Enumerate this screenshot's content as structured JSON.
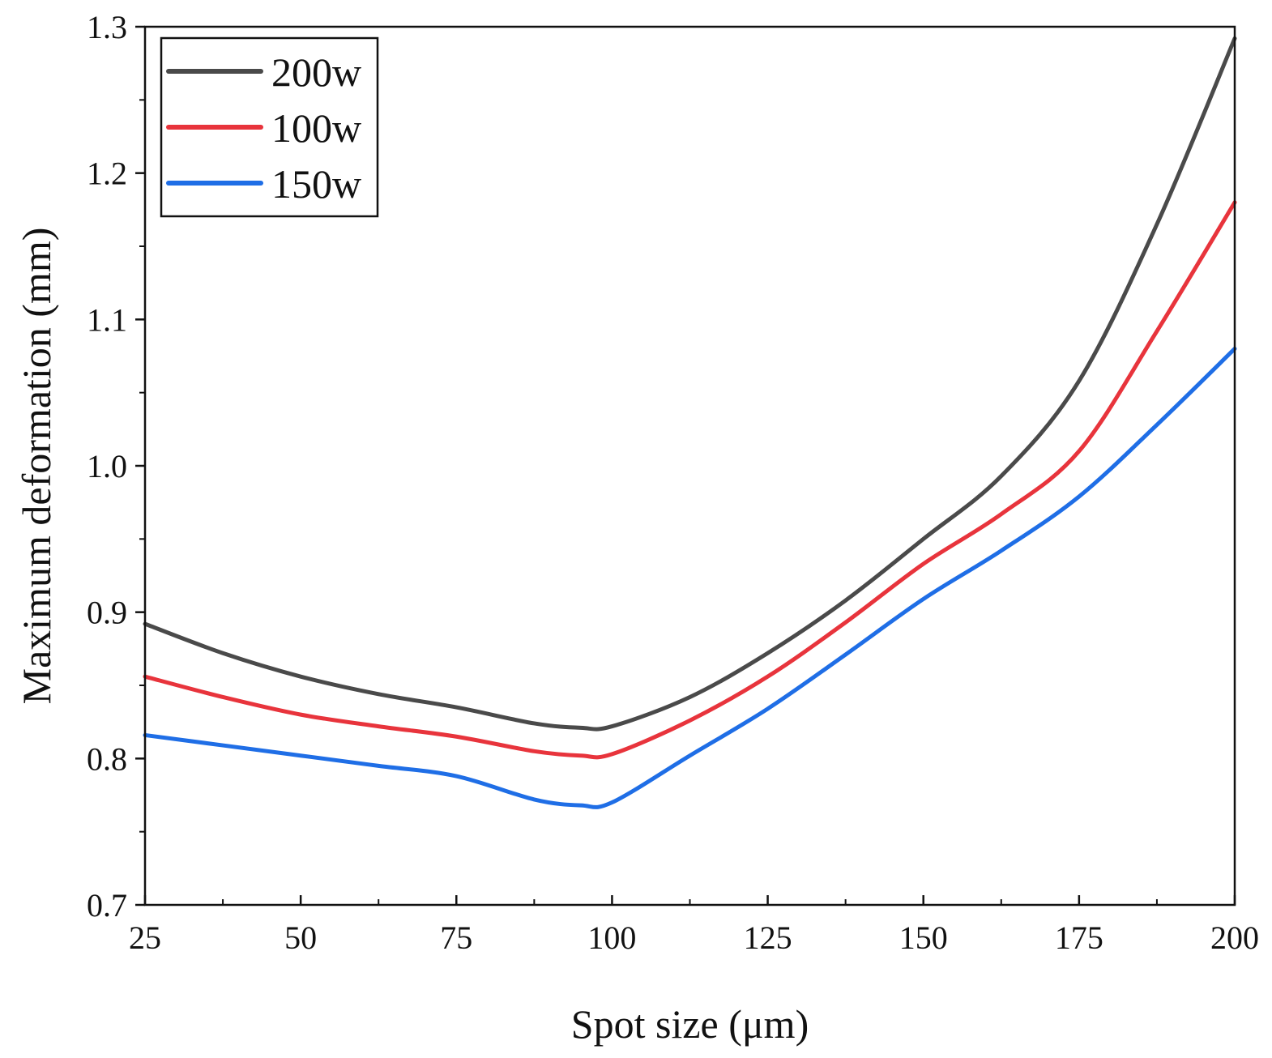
{
  "chart_data": {
    "type": "line",
    "title": "",
    "xlabel": "Spot size (μm)",
    "ylabel": "Maximum deformation (mm)",
    "xlim": [
      25,
      200
    ],
    "ylim": [
      0.7,
      1.3
    ],
    "x_major_ticks": [
      25,
      50,
      75,
      100,
      125,
      150,
      175,
      200
    ],
    "x_tick_labels": [
      "25",
      "50",
      "75",
      "100",
      "125",
      "150",
      "175",
      "200"
    ],
    "y_major_ticks": [
      0.7,
      0.8,
      0.9,
      1.0,
      1.1,
      1.2,
      1.3
    ],
    "y_tick_labels": [
      "0.7",
      "0.8",
      "0.9",
      "1.0",
      "1.1",
      "1.2",
      "1.3"
    ],
    "grid": false,
    "legend_position": "top-left",
    "x": [
      25,
      37.5,
      50,
      62.5,
      75,
      87.5,
      95,
      100,
      112.5,
      125,
      137.5,
      150,
      162.5,
      175,
      187.5,
      200
    ],
    "series": [
      {
        "name": "200w",
        "color": "#4a4a4a",
        "values": [
          0.892,
          0.872,
          0.856,
          0.844,
          0.835,
          0.824,
          0.821,
          0.822,
          0.842,
          0.872,
          0.908,
          0.95,
          0.993,
          1.058,
          1.165,
          1.292
        ]
      },
      {
        "name": "100w",
        "color": "#e8343c",
        "values": [
          0.856,
          0.842,
          0.83,
          0.822,
          0.815,
          0.805,
          0.802,
          0.803,
          0.826,
          0.856,
          0.893,
          0.933,
          0.967,
          1.01,
          1.092,
          1.18
        ]
      },
      {
        "name": "150w",
        "color": "#1f6ee6",
        "values": [
          0.816,
          0.809,
          0.802,
          0.795,
          0.788,
          0.772,
          0.768,
          0.77,
          0.802,
          0.834,
          0.871,
          0.909,
          0.942,
          0.979,
          1.028,
          1.08
        ]
      }
    ]
  }
}
